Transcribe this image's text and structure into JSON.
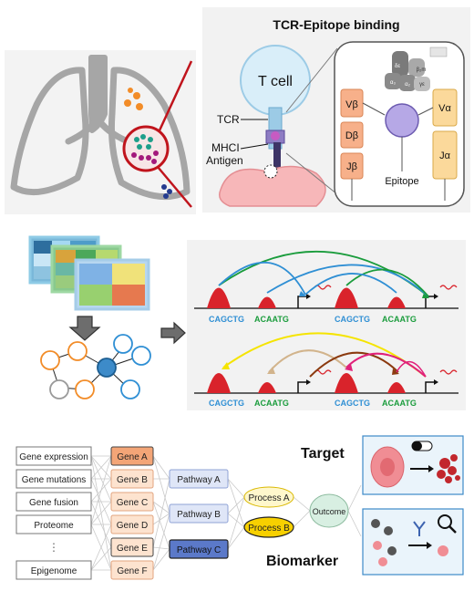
{
  "tcr_panel": {
    "title": "TCR-Epitope binding",
    "t_cell_label": "T cell",
    "tcr_label": "TCR",
    "mhc_label_line1": "MHCI",
    "mhc_label_line2": "Antigen",
    "epitope_label": "Epitope",
    "beta_chain": [
      "Vβ",
      "Dβ",
      "Jβ"
    ],
    "alpha_chain": [
      "Vα",
      "Jα"
    ],
    "cd3_labels": [
      "δε",
      "β₂m",
      "α₃",
      "α₂",
      "γε"
    ]
  },
  "motif_panel": {
    "motif_a": "CAGCTG",
    "motif_b": "ACAATG"
  },
  "model_panel": {
    "inputs": [
      "Gene expression",
      "Gene mutations",
      "Gene fusion",
      "Proteome",
      "⋮",
      "Epigenome"
    ],
    "genes": [
      "Gene A",
      "Gene B",
      "Gene C",
      "Gene D",
      "Gene E",
      "Gene F"
    ],
    "pathways": [
      "Pathway A",
      "Pathway B",
      "Pathway C"
    ],
    "processes": [
      "Process A",
      "Process B"
    ],
    "outcome": "Outcome",
    "target_label": "Target",
    "biomarker_label": "Biomarker"
  },
  "colors": {
    "red": "#d9232b",
    "green": "#1a9c3c",
    "blue": "#2f8fd4",
    "orange": "#f28c28",
    "yellow": "#f5e400",
    "tan": "#d2b48c",
    "brown": "#8b3a0f",
    "magenta": "#e0217a",
    "gene_highlight": "#f3a577",
    "gene_fill": "#fde3cf",
    "pathway_fill": "#dfe6f7",
    "pathway_highlight": "#5b79c9",
    "process_fill": "#fff7cc",
    "process_highlight": "#f7d000",
    "cell_pink": "#f08d94"
  }
}
